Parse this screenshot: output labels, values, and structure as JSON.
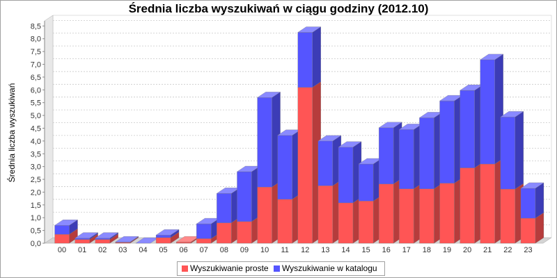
{
  "chart_data": {
    "type": "bar",
    "stacked": true,
    "style": "3d",
    "title": "Średnia liczba wyszukiwań w ciągu godziny (2012.10)",
    "xlabel": "",
    "ylabel": "Średnia liczba wyszukiwań",
    "ylim": [
      0,
      8.7
    ],
    "yticks": [
      "0,0",
      "0,5",
      "1,0",
      "1,5",
      "2,0",
      "2,5",
      "3,0",
      "3,5",
      "4,0",
      "4,5",
      "5,0",
      "5,5",
      "6,0",
      "6,5",
      "7,0",
      "7,5",
      "8,0",
      "8,5"
    ],
    "categories": [
      "00",
      "01",
      "02",
      "03",
      "04",
      "05",
      "06",
      "07",
      "08",
      "09",
      "10",
      "11",
      "12",
      "13",
      "14",
      "15",
      "16",
      "17",
      "18",
      "19",
      "20",
      "21",
      "22",
      "23"
    ],
    "series": [
      {
        "name": "Wyszukiwanie proste",
        "color": "#ff5555",
        "values": [
          0.35,
          0.15,
          0.15,
          0.03,
          0.0,
          0.22,
          0.05,
          0.18,
          0.8,
          0.85,
          2.2,
          1.72,
          6.1,
          2.25,
          1.58,
          1.65,
          2.32,
          2.13,
          2.13,
          2.35,
          2.95,
          3.1,
          2.12,
          0.98
        ]
      },
      {
        "name": "Wyszukiwanie w katalogu",
        "color": "#5555ff",
        "values": [
          0.35,
          0.05,
          0.05,
          0.02,
          0.0,
          0.1,
          0.0,
          0.58,
          1.15,
          1.95,
          3.5,
          2.5,
          2.15,
          1.75,
          2.18,
          1.45,
          2.2,
          2.32,
          2.78,
          3.22,
          3.03,
          4.08,
          2.82,
          1.17
        ]
      }
    ],
    "grid": true,
    "legend": "bottom"
  }
}
